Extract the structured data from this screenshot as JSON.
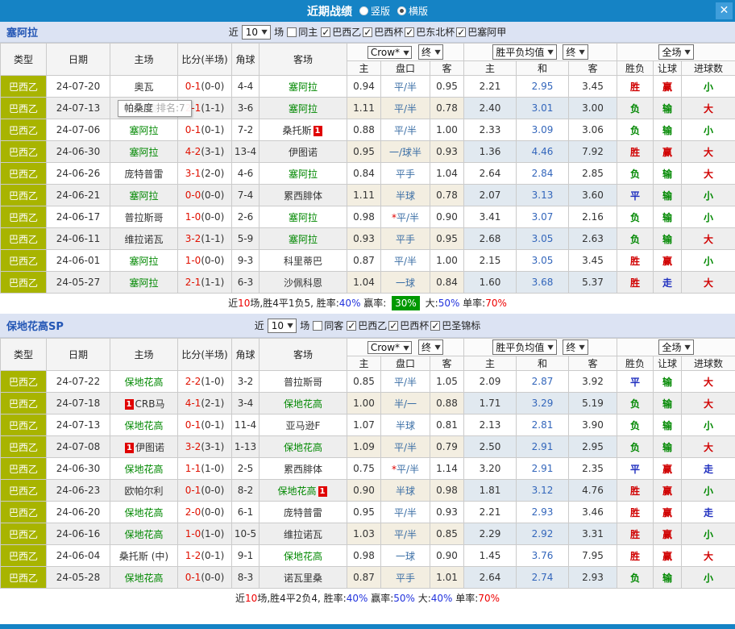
{
  "titlebar": {
    "title": "近期战绩",
    "options": [
      {
        "label": "竖版",
        "checked": false
      },
      {
        "label": "横版",
        "checked": true
      }
    ],
    "close_label": "✕"
  },
  "columns": {
    "left": [
      "类型",
      "日期",
      "主场",
      "比分(半场)",
      "角球",
      "客场"
    ],
    "sub": [
      "主",
      "盘口",
      "客",
      "主",
      "和",
      "客",
      "胜负",
      "让球",
      "进球数"
    ],
    "dropdowns": {
      "odds_source": "Crow*",
      "final1": "终",
      "avg": "胜平负均值",
      "final2": "终",
      "scope": "全场"
    }
  },
  "colors": {
    "accent_blue": "#1583c5",
    "type_badge": "#a8b400",
    "win_red": "#d00000",
    "lose_green": "#008800",
    "draw_blue": "#1f2fbf",
    "summary_box_green": "#009900"
  },
  "sections": [
    {
      "team": "塞阿拉",
      "near_label": "近",
      "near_value": "10",
      "unit_label": "场",
      "same_option": {
        "label": "同主",
        "checked": false
      },
      "leagues": [
        {
          "label": "巴西乙",
          "checked": true
        },
        {
          "label": "巴西杯",
          "checked": true
        },
        {
          "label": "巴东北杯",
          "checked": true
        },
        {
          "label": "巴塞阿甲",
          "checked": true
        }
      ],
      "tooltip": {
        "name": "帕桑度",
        "rank": "排名:7"
      },
      "rows": [
        {
          "type": "巴西乙",
          "date": "24-07-20",
          "home": "奥瓦",
          "home_focus": false,
          "score": "0-1",
          "half": "(0-0)",
          "corner": "4-4",
          "away": "塞阿拉",
          "away_focus": true,
          "home_odds": "0.94",
          "handicap": "平/半",
          "away_odds": "0.95",
          "avg_home": "2.21",
          "avg_draw": "2.95",
          "avg_away": "3.45",
          "result": "胜",
          "handicap_result": "赢",
          "goals_result": "小"
        },
        {
          "type": "巴西乙",
          "date": "24-07-13",
          "home": "帕桑度",
          "home_focus": false,
          "score": "2-1",
          "half": "(1-1)",
          "corner": "3-6",
          "away": "塞阿拉",
          "away_focus": true,
          "home_odds": "1.11",
          "handicap": "平/半",
          "away_odds": "0.78",
          "avg_home": "2.40",
          "avg_draw": "3.01",
          "avg_away": "3.00",
          "result": "负",
          "handicap_result": "输",
          "goals_result": "大"
        },
        {
          "type": "巴西乙",
          "date": "24-07-06",
          "home": "塞阿拉",
          "home_focus": true,
          "score": "0-1",
          "half": "(0-1)",
          "corner": "7-2",
          "away": "桑托斯",
          "away_focus": false,
          "away_badge_post": "1",
          "home_odds": "0.88",
          "handicap": "平/半",
          "away_odds": "1.00",
          "avg_home": "2.33",
          "avg_draw": "3.09",
          "avg_away": "3.06",
          "result": "负",
          "handicap_result": "输",
          "goals_result": "小"
        },
        {
          "type": "巴西乙",
          "date": "24-06-30",
          "home": "塞阿拉",
          "home_focus": true,
          "score": "4-2",
          "half": "(3-1)",
          "corner": "13-4",
          "away": "伊图诺",
          "away_focus": false,
          "home_odds": "0.95",
          "handicap": "一/球半",
          "away_odds": "0.93",
          "avg_home": "1.36",
          "avg_draw": "4.46",
          "avg_away": "7.92",
          "result": "胜",
          "handicap_result": "赢",
          "goals_result": "大"
        },
        {
          "type": "巴西乙",
          "date": "24-06-26",
          "home": "庞特普雷",
          "home_focus": false,
          "score": "3-1",
          "half": "(2-0)",
          "corner": "4-6",
          "away": "塞阿拉",
          "away_focus": true,
          "home_odds": "0.84",
          "handicap": "平手",
          "away_odds": "1.04",
          "avg_home": "2.64",
          "avg_draw": "2.84",
          "avg_away": "2.85",
          "result": "负",
          "handicap_result": "输",
          "goals_result": "大"
        },
        {
          "type": "巴西乙",
          "date": "24-06-21",
          "home": "塞阿拉",
          "home_focus": true,
          "score": "0-0",
          "half": "(0-0)",
          "corner": "7-4",
          "away": "累西腓体",
          "away_focus": false,
          "home_odds": "1.11",
          "handicap": "半球",
          "away_odds": "0.78",
          "avg_home": "2.07",
          "avg_draw": "3.13",
          "avg_away": "3.60",
          "result": "平",
          "handicap_result": "输",
          "goals_result": "小"
        },
        {
          "type": "巴西乙",
          "date": "24-06-17",
          "home": "普拉斯哥",
          "home_focus": false,
          "score": "1-0",
          "half": "(0-0)",
          "corner": "2-6",
          "away": "塞阿拉",
          "away_focus": true,
          "home_odds": "0.98",
          "handicap": "平/半",
          "handicap_star": true,
          "away_odds": "0.90",
          "avg_home": "3.41",
          "avg_draw": "3.07",
          "avg_away": "2.16",
          "result": "负",
          "handicap_result": "输",
          "goals_result": "小"
        },
        {
          "type": "巴西乙",
          "date": "24-06-11",
          "home": "维拉诺瓦",
          "home_focus": false,
          "score": "3-2",
          "half": "(1-1)",
          "corner": "5-9",
          "away": "塞阿拉",
          "away_focus": true,
          "home_odds": "0.93",
          "handicap": "平手",
          "away_odds": "0.95",
          "avg_home": "2.68",
          "avg_draw": "3.05",
          "avg_away": "2.63",
          "result": "负",
          "handicap_result": "输",
          "goals_result": "大"
        },
        {
          "type": "巴西乙",
          "date": "24-06-01",
          "home": "塞阿拉",
          "home_focus": true,
          "score": "1-0",
          "half": "(0-0)",
          "corner": "9-3",
          "away": "科里蒂巴",
          "away_focus": false,
          "home_odds": "0.87",
          "handicap": "平/半",
          "away_odds": "1.00",
          "avg_home": "2.15",
          "avg_draw": "3.05",
          "avg_away": "3.45",
          "result": "胜",
          "handicap_result": "赢",
          "goals_result": "小"
        },
        {
          "type": "巴西乙",
          "date": "24-05-27",
          "home": "塞阿拉",
          "home_focus": true,
          "score": "2-1",
          "half": "(1-1)",
          "corner": "6-3",
          "away": "沙佩科恩",
          "away_focus": false,
          "home_odds": "1.04",
          "handicap": "一球",
          "away_odds": "0.84",
          "avg_home": "1.60",
          "avg_draw": "3.68",
          "avg_away": "5.37",
          "result": "胜",
          "handicap_result": "走",
          "goals_result": "大"
        }
      ],
      "summary": [
        {
          "text": "近"
        },
        {
          "text": "10",
          "style": "red"
        },
        {
          "text": "场,胜4平1负5, 胜率:"
        },
        {
          "text": "40%",
          "style": "blue"
        },
        {
          "text": " 赢率: "
        },
        {
          "text": "30%",
          "style": "box"
        },
        {
          "text": " 大:"
        },
        {
          "text": "50%",
          "style": "blue"
        },
        {
          "text": " 单率:"
        },
        {
          "text": "70%",
          "style": "red"
        }
      ]
    },
    {
      "team": "保地花高SP",
      "near_label": "近",
      "near_value": "10",
      "unit_label": "场",
      "same_option": {
        "label": "同客",
        "checked": false
      },
      "leagues": [
        {
          "label": "巴西乙",
          "checked": true
        },
        {
          "label": "巴西杯",
          "checked": true
        },
        {
          "label": "巴圣锦标",
          "checked": true
        }
      ],
      "rows": [
        {
          "type": "巴西乙",
          "date": "24-07-22",
          "home": "保地花高",
          "home_focus": true,
          "score": "2-2",
          "half": "(1-0)",
          "corner": "3-2",
          "away": "普拉斯哥",
          "away_focus": false,
          "home_odds": "0.85",
          "handicap": "平/半",
          "away_odds": "1.05",
          "avg_home": "2.09",
          "avg_draw": "2.87",
          "avg_away": "3.92",
          "result": "平",
          "handicap_result": "输",
          "goals_result": "大"
        },
        {
          "type": "巴西乙",
          "date": "24-07-18",
          "home": "CRB马",
          "home_focus": false,
          "home_badge_pre": "1",
          "score": "4-1",
          "half": "(2-1)",
          "corner": "3-4",
          "away": "保地花高",
          "away_focus": true,
          "home_odds": "1.00",
          "handicap": "半/一",
          "away_odds": "0.88",
          "avg_home": "1.71",
          "avg_draw": "3.29",
          "avg_away": "5.19",
          "result": "负",
          "handicap_result": "输",
          "goals_result": "大"
        },
        {
          "type": "巴西乙",
          "date": "24-07-13",
          "home": "保地花高",
          "home_focus": true,
          "score": "0-1",
          "half": "(0-1)",
          "corner": "11-4",
          "away": "亚马逊F",
          "away_focus": false,
          "home_odds": "1.07",
          "handicap": "半球",
          "away_odds": "0.81",
          "avg_home": "2.13",
          "avg_draw": "2.81",
          "avg_away": "3.90",
          "result": "负",
          "handicap_result": "输",
          "goals_result": "小"
        },
        {
          "type": "巴西乙",
          "date": "24-07-08",
          "home": "伊图诺",
          "home_focus": false,
          "home_badge_pre": "1",
          "score": "3-2",
          "half": "(3-1)",
          "corner": "1-13",
          "away": "保地花高",
          "away_focus": true,
          "home_odds": "1.09",
          "handicap": "平/半",
          "away_odds": "0.79",
          "avg_home": "2.50",
          "avg_draw": "2.91",
          "avg_away": "2.95",
          "result": "负",
          "handicap_result": "输",
          "goals_result": "大"
        },
        {
          "type": "巴西乙",
          "date": "24-06-30",
          "home": "保地花高",
          "home_focus": true,
          "score": "1-1",
          "half": "(1-0)",
          "corner": "2-5",
          "away": "累西腓体",
          "away_focus": false,
          "home_odds": "0.75",
          "handicap": "平/半",
          "handicap_star": true,
          "away_odds": "1.14",
          "avg_home": "3.20",
          "avg_draw": "2.91",
          "avg_away": "2.35",
          "result": "平",
          "handicap_result": "赢",
          "goals_result": "走"
        },
        {
          "type": "巴西乙",
          "date": "24-06-23",
          "home": "欧帕尔利",
          "home_focus": false,
          "score": "0-1",
          "half": "(0-0)",
          "corner": "8-2",
          "away": "保地花高",
          "away_focus": true,
          "away_badge_post": "1",
          "home_odds": "0.90",
          "handicap": "半球",
          "away_odds": "0.98",
          "avg_home": "1.81",
          "avg_draw": "3.12",
          "avg_away": "4.76",
          "result": "胜",
          "handicap_result": "赢",
          "goals_result": "小"
        },
        {
          "type": "巴西乙",
          "date": "24-06-20",
          "home": "保地花高",
          "home_focus": true,
          "score": "2-0",
          "half": "(0-0)",
          "corner": "6-1",
          "away": "庞特普雷",
          "away_focus": false,
          "home_odds": "0.95",
          "handicap": "平/半",
          "away_odds": "0.93",
          "avg_home": "2.21",
          "avg_draw": "2.93",
          "avg_away": "3.46",
          "result": "胜",
          "handicap_result": "赢",
          "goals_result": "走"
        },
        {
          "type": "巴西乙",
          "date": "24-06-16",
          "home": "保地花高",
          "home_focus": true,
          "score": "1-0",
          "half": "(1-0)",
          "corner": "10-5",
          "away": "维拉诺瓦",
          "away_focus": false,
          "home_odds": "1.03",
          "handicap": "平/半",
          "away_odds": "0.85",
          "avg_home": "2.29",
          "avg_draw": "2.92",
          "avg_away": "3.31",
          "result": "胜",
          "handicap_result": "赢",
          "goals_result": "小"
        },
        {
          "type": "巴西乙",
          "date": "24-06-04",
          "home": "桑托斯 (中)",
          "home_focus": false,
          "score": "1-2",
          "half": "(0-1)",
          "corner": "9-1",
          "away": "保地花高",
          "away_focus": true,
          "home_odds": "0.98",
          "handicap": "一球",
          "away_odds": "0.90",
          "avg_home": "1.45",
          "avg_draw": "3.76",
          "avg_away": "7.95",
          "result": "胜",
          "handicap_result": "赢",
          "goals_result": "大"
        },
        {
          "type": "巴西乙",
          "date": "24-05-28",
          "home": "保地花高",
          "home_focus": true,
          "score": "0-1",
          "half": "(0-0)",
          "corner": "8-3",
          "away": "诺瓦里桑",
          "away_focus": false,
          "home_odds": "0.87",
          "handicap": "平手",
          "away_odds": "1.01",
          "avg_home": "2.64",
          "avg_draw": "2.74",
          "avg_away": "2.93",
          "result": "负",
          "handicap_result": "输",
          "goals_result": "小"
        }
      ],
      "summary": [
        {
          "text": "近"
        },
        {
          "text": "10",
          "style": "red"
        },
        {
          "text": "场,胜4平2负4, 胜率:"
        },
        {
          "text": "40%",
          "style": "blue"
        },
        {
          "text": " 赢率:"
        },
        {
          "text": "50%",
          "style": "blue"
        },
        {
          "text": " 大:"
        },
        {
          "text": "40%",
          "style": "blue"
        },
        {
          "text": " 单率:"
        },
        {
          "text": "70%",
          "style": "red"
        }
      ]
    }
  ]
}
